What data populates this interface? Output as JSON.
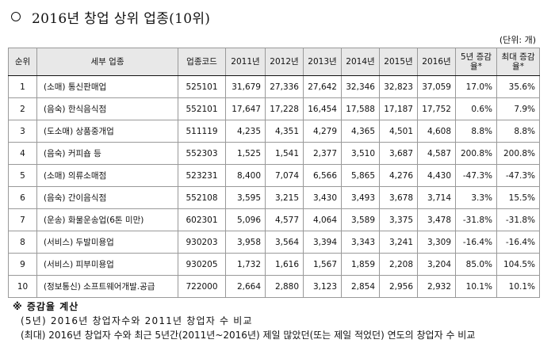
{
  "title": "2016년 창업 상위 업종(10위)",
  "unit_note": "(단위: 개)",
  "table": {
    "headers": [
      "순위",
      "세부 업종",
      "업종코드",
      "2011년",
      "2012년",
      "2013년",
      "2014년",
      "2015년",
      "2016년",
      "5년 증감율*",
      "최대 증감율*"
    ],
    "rows": [
      {
        "rank": "1",
        "category": "(소매) 통신판매업",
        "code": "525101",
        "y2011": "31,679",
        "y2012": "27,336",
        "y2013": "27,642",
        "y2014": "32,346",
        "y2015": "32,823",
        "y2016": "37,059",
        "rate5": "17.0%",
        "ratemax": "35.6%"
      },
      {
        "rank": "2",
        "category": "(음숙) 한식음식점",
        "code": "552101",
        "y2011": "17,647",
        "y2012": "17,228",
        "y2013": "16,454",
        "y2014": "17,588",
        "y2015": "17,187",
        "y2016": "17,752",
        "rate5": "0.6%",
        "ratemax": "7.9%"
      },
      {
        "rank": "3",
        "category": "(도소매) 상품중개업",
        "code": "511119",
        "y2011": "4,235",
        "y2012": "4,351",
        "y2013": "4,279",
        "y2014": "4,365",
        "y2015": "4,501",
        "y2016": "4,608",
        "rate5": "8.8%",
        "ratemax": "8.8%"
      },
      {
        "rank": "4",
        "category": "(음숙) 커피숍 등",
        "code": "552303",
        "y2011": "1,525",
        "y2012": "1,541",
        "y2013": "2,377",
        "y2014": "3,510",
        "y2015": "3,687",
        "y2016": "4,587",
        "rate5": "200.8%",
        "ratemax": "200.8%"
      },
      {
        "rank": "5",
        "category": "(소매) 의류소매점",
        "code": "523231",
        "y2011": "8,400",
        "y2012": "7,074",
        "y2013": "6,566",
        "y2014": "5,865",
        "y2015": "4,276",
        "y2016": "4,430",
        "rate5": "-47.3%",
        "ratemax": "-47.3%"
      },
      {
        "rank": "6",
        "category": "(음숙) 간이음식점",
        "code": "552108",
        "y2011": "3,595",
        "y2012": "3,215",
        "y2013": "3,430",
        "y2014": "3,493",
        "y2015": "3,678",
        "y2016": "3,714",
        "rate5": "3.3%",
        "ratemax": "15.5%"
      },
      {
        "rank": "7",
        "category": "(운송) 화물운송업(6톤 미만)",
        "code": "602301",
        "y2011": "5,096",
        "y2012": "4,577",
        "y2013": "4,064",
        "y2014": "3,589",
        "y2015": "3,375",
        "y2016": "3,478",
        "rate5": "-31.8%",
        "ratemax": "-31.8%"
      },
      {
        "rank": "8",
        "category": "(서비스) 두발미용업",
        "code": "930203",
        "y2011": "3,958",
        "y2012": "3,564",
        "y2013": "3,394",
        "y2014": "3,343",
        "y2015": "3,241",
        "y2016": "3,309",
        "rate5": "-16.4%",
        "ratemax": "-16.4%"
      },
      {
        "rank": "9",
        "category": "(서비스) 피부미용업",
        "code": "930205",
        "y2011": "1,732",
        "y2012": "1,616",
        "y2013": "1,567",
        "y2014": "1,859",
        "y2015": "2,208",
        "y2016": "3,204",
        "rate5": "85.0%",
        "ratemax": "104.5%"
      },
      {
        "rank": "10",
        "category": "(정보통신) 소프트웨어개발.공급",
        "code": "722000",
        "y2011": "2,664",
        "y2012": "2,880",
        "y2013": "3,123",
        "y2014": "2,854",
        "y2015": "2,956",
        "y2016": "2,932",
        "rate5": "10.1%",
        "ratemax": "10.1%"
      }
    ]
  },
  "notes": {
    "heading": "※ 증감율 계산",
    "line1": "(5년) 2016년 창업자수와 2011년 창업자 수 비교",
    "line2": "(최대) 2016년 창업자 수와 최근 5년간(2011년~2016년) 제일 많았던(또는 제일 적었던) 연도의 창업자 수 비교"
  },
  "colors": {
    "header_bg": "#e8e8e8",
    "border": "#111111"
  }
}
